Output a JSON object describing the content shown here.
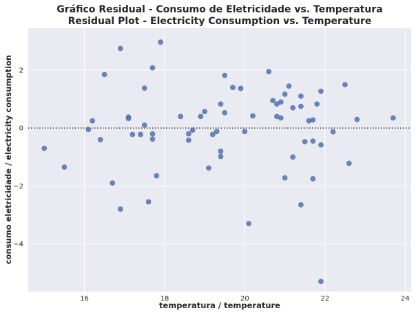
{
  "chart_data": {
    "type": "scatter",
    "title_line1": "Gráfico Residual - Consumo de Eletricidade vs. Temperatura",
    "title_line2": "Residual Plot - Electricity Consumption vs. Temperature",
    "xlabel": "temperatura / temperature",
    "ylabel": "consumo eletricidade / electricity consumption",
    "xlim": [
      14.6,
      24.15
    ],
    "ylim": [
      -5.65,
      3.45
    ],
    "xticks": [
      16,
      18,
      20,
      22,
      24
    ],
    "yticks": [
      -4,
      -2,
      0,
      2
    ],
    "reference_line_y": 0,
    "grid": true,
    "background_color": "#eaeaf2",
    "point_color": "#4c72b0",
    "points": [
      {
        "x": 15.0,
        "y": -0.7
      },
      {
        "x": 15.5,
        "y": -1.35
      },
      {
        "x": 16.1,
        "y": -0.05
      },
      {
        "x": 16.2,
        "y": 0.25
      },
      {
        "x": 16.4,
        "y": -0.4
      },
      {
        "x": 16.5,
        "y": 1.85
      },
      {
        "x": 16.7,
        "y": -1.9
      },
      {
        "x": 16.9,
        "y": 2.75
      },
      {
        "x": 16.9,
        "y": -2.8
      },
      {
        "x": 17.1,
        "y": 0.38
      },
      {
        "x": 17.1,
        "y": 0.33
      },
      {
        "x": 17.2,
        "y": -0.22
      },
      {
        "x": 17.4,
        "y": -0.22
      },
      {
        "x": 17.5,
        "y": 1.38
      },
      {
        "x": 17.5,
        "y": 0.1
      },
      {
        "x": 17.6,
        "y": -2.55
      },
      {
        "x": 17.7,
        "y": 2.08
      },
      {
        "x": 17.7,
        "y": -0.2
      },
      {
        "x": 17.7,
        "y": -0.38
      },
      {
        "x": 17.8,
        "y": -1.65
      },
      {
        "x": 17.9,
        "y": 2.97
      },
      {
        "x": 18.4,
        "y": 0.4
      },
      {
        "x": 18.6,
        "y": -0.2
      },
      {
        "x": 18.6,
        "y": -0.42
      },
      {
        "x": 18.7,
        "y": -0.07
      },
      {
        "x": 18.9,
        "y": 0.4
      },
      {
        "x": 19.0,
        "y": 0.57
      },
      {
        "x": 19.1,
        "y": -1.38
      },
      {
        "x": 19.2,
        "y": -0.22
      },
      {
        "x": 19.3,
        "y": -0.12
      },
      {
        "x": 19.4,
        "y": 0.83
      },
      {
        "x": 19.4,
        "y": -0.8
      },
      {
        "x": 19.4,
        "y": -0.98
      },
      {
        "x": 19.5,
        "y": 1.82
      },
      {
        "x": 19.5,
        "y": 0.53
      },
      {
        "x": 19.7,
        "y": 1.4
      },
      {
        "x": 19.9,
        "y": 1.37
      },
      {
        "x": 20.0,
        "y": -0.12
      },
      {
        "x": 20.1,
        "y": -3.3
      },
      {
        "x": 20.2,
        "y": 0.42
      },
      {
        "x": 20.6,
        "y": 1.95
      },
      {
        "x": 20.7,
        "y": 0.95
      },
      {
        "x": 20.8,
        "y": 0.83
      },
      {
        "x": 20.8,
        "y": 0.4
      },
      {
        "x": 20.9,
        "y": 0.9
      },
      {
        "x": 20.9,
        "y": 0.35
      },
      {
        "x": 21.0,
        "y": 1.17
      },
      {
        "x": 21.0,
        "y": -1.72
      },
      {
        "x": 21.1,
        "y": 1.45
      },
      {
        "x": 21.2,
        "y": 0.7
      },
      {
        "x": 21.2,
        "y": -1.0
      },
      {
        "x": 21.4,
        "y": 1.1
      },
      {
        "x": 21.4,
        "y": 0.75
      },
      {
        "x": 21.4,
        "y": -2.65
      },
      {
        "x": 21.5,
        "y": -0.47
      },
      {
        "x": 21.6,
        "y": 0.25
      },
      {
        "x": 21.7,
        "y": 0.28
      },
      {
        "x": 21.7,
        "y": -0.45
      },
      {
        "x": 21.7,
        "y": -1.75
      },
      {
        "x": 21.8,
        "y": 0.83
      },
      {
        "x": 21.9,
        "y": 1.27
      },
      {
        "x": 21.9,
        "y": -0.58
      },
      {
        "x": 21.9,
        "y": -5.3
      },
      {
        "x": 22.2,
        "y": -0.13
      },
      {
        "x": 22.5,
        "y": 1.5
      },
      {
        "x": 22.6,
        "y": -1.22
      },
      {
        "x": 22.8,
        "y": 0.3
      },
      {
        "x": 23.7,
        "y": 0.35
      }
    ]
  }
}
